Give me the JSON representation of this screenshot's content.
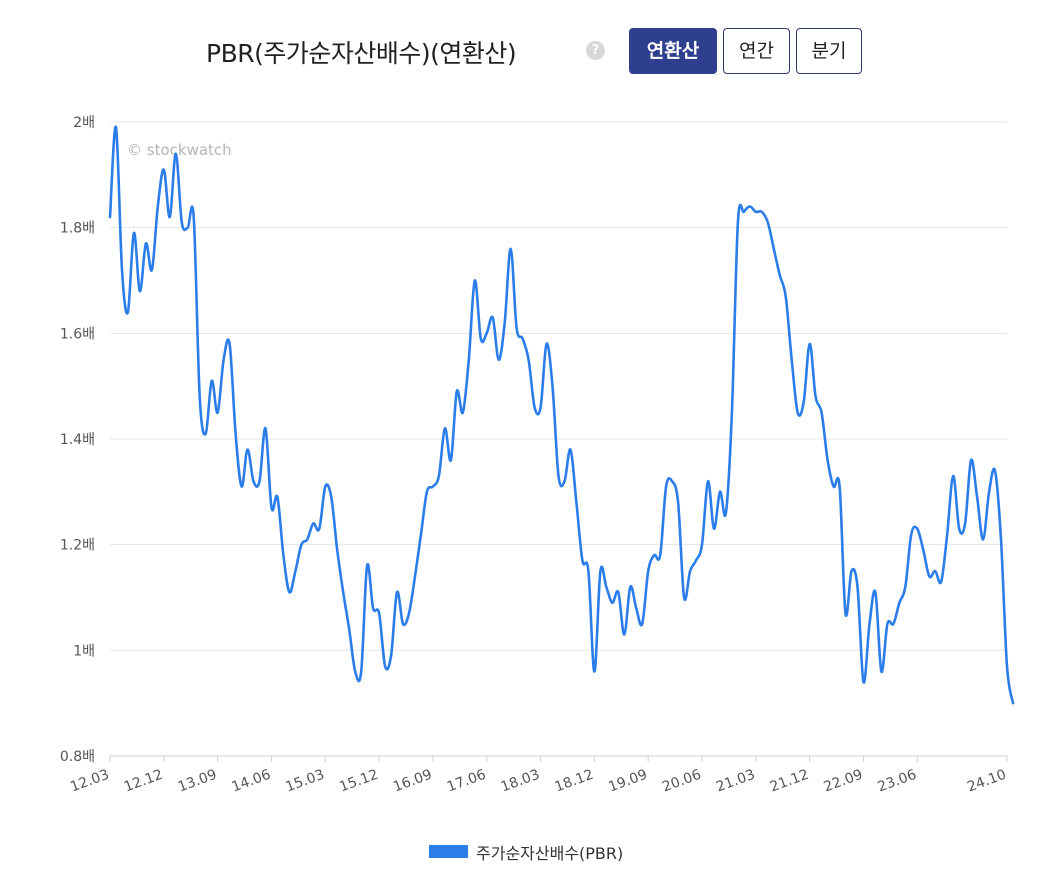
{
  "header": {
    "title": "PBR(주가순자산배수)(연환산)",
    "help_icon": "question-mark-icon",
    "buttons": [
      {
        "label": "연환산",
        "active": true
      },
      {
        "label": "연간",
        "active": false
      },
      {
        "label": "분기",
        "active": false
      }
    ]
  },
  "watermark": "© stockwatch",
  "colors": {
    "line": "#2b7de9",
    "active_button": "#2f3f8f",
    "grid": "#e6e6e6"
  },
  "chart_data": {
    "type": "line",
    "title": "PBR(주가순자산배수)(연환산)",
    "ylim": [
      0.8,
      2.0
    ],
    "y_ticks": [
      0.8,
      1.0,
      1.2,
      1.4,
      1.6,
      1.8,
      2.0
    ],
    "y_tick_labels": [
      "0.8배",
      "1배",
      "1.2배",
      "1.4배",
      "1.6배",
      "1.8배",
      "2배"
    ],
    "x_tick_labels": [
      "12.03",
      "12.12",
      "13.09",
      "14.06",
      "15.03",
      "15.12",
      "16.09",
      "17.06",
      "18.03",
      "18.12",
      "19.09",
      "20.06",
      "21.03",
      "21.12",
      "22.09",
      "23.06",
      "24.10"
    ],
    "x_tick_index": [
      0,
      9,
      18,
      27,
      36,
      45,
      54,
      63,
      72,
      81,
      90,
      99,
      108,
      117,
      126,
      135,
      150
    ],
    "x_range": [
      0,
      150
    ],
    "grid": true,
    "legend_position": "bottom",
    "series": [
      {
        "name": "주가순자산배수(PBR)",
        "values": [
          1.82,
          1.99,
          1.72,
          1.64,
          1.79,
          1.68,
          1.77,
          1.72,
          1.84,
          1.91,
          1.82,
          1.94,
          1.81,
          1.8,
          1.82,
          1.48,
          1.41,
          1.51,
          1.45,
          1.55,
          1.58,
          1.41,
          1.31,
          1.38,
          1.32,
          1.32,
          1.42,
          1.27,
          1.29,
          1.18,
          1.11,
          1.15,
          1.2,
          1.21,
          1.24,
          1.23,
          1.31,
          1.29,
          1.19,
          1.11,
          1.04,
          0.96,
          0.96,
          1.16,
          1.08,
          1.07,
          0.97,
          0.99,
          1.11,
          1.05,
          1.07,
          1.14,
          1.22,
          1.3,
          1.31,
          1.33,
          1.42,
          1.36,
          1.49,
          1.45,
          1.55,
          1.7,
          1.59,
          1.6,
          1.63,
          1.55,
          1.62,
          1.76,
          1.61,
          1.59,
          1.55,
          1.46,
          1.46,
          1.58,
          1.5,
          1.33,
          1.32,
          1.38,
          1.28,
          1.17,
          1.15,
          0.96,
          1.15,
          1.12,
          1.09,
          1.11,
          1.03,
          1.12,
          1.08,
          1.05,
          1.15,
          1.18,
          1.18,
          1.31,
          1.32,
          1.28,
          1.1,
          1.15,
          1.17,
          1.2,
          1.32,
          1.23,
          1.3,
          1.26,
          1.45,
          1.81,
          1.83,
          1.84,
          1.83,
          1.83,
          1.81,
          1.76,
          1.71,
          1.67,
          1.55,
          1.45,
          1.47,
          1.58,
          1.48,
          1.45,
          1.36,
          1.31,
          1.31,
          1.07,
          1.15,
          1.12,
          0.94,
          1.05,
          1.11,
          0.96,
          1.05,
          1.05,
          1.09,
          1.12,
          1.22,
          1.23,
          1.19,
          1.14,
          1.15,
          1.13,
          1.22,
          1.33,
          1.23,
          1.24,
          1.36,
          1.29,
          1.21,
          1.3,
          1.34,
          1.21,
          0.97,
          0.9
        ]
      }
    ]
  }
}
